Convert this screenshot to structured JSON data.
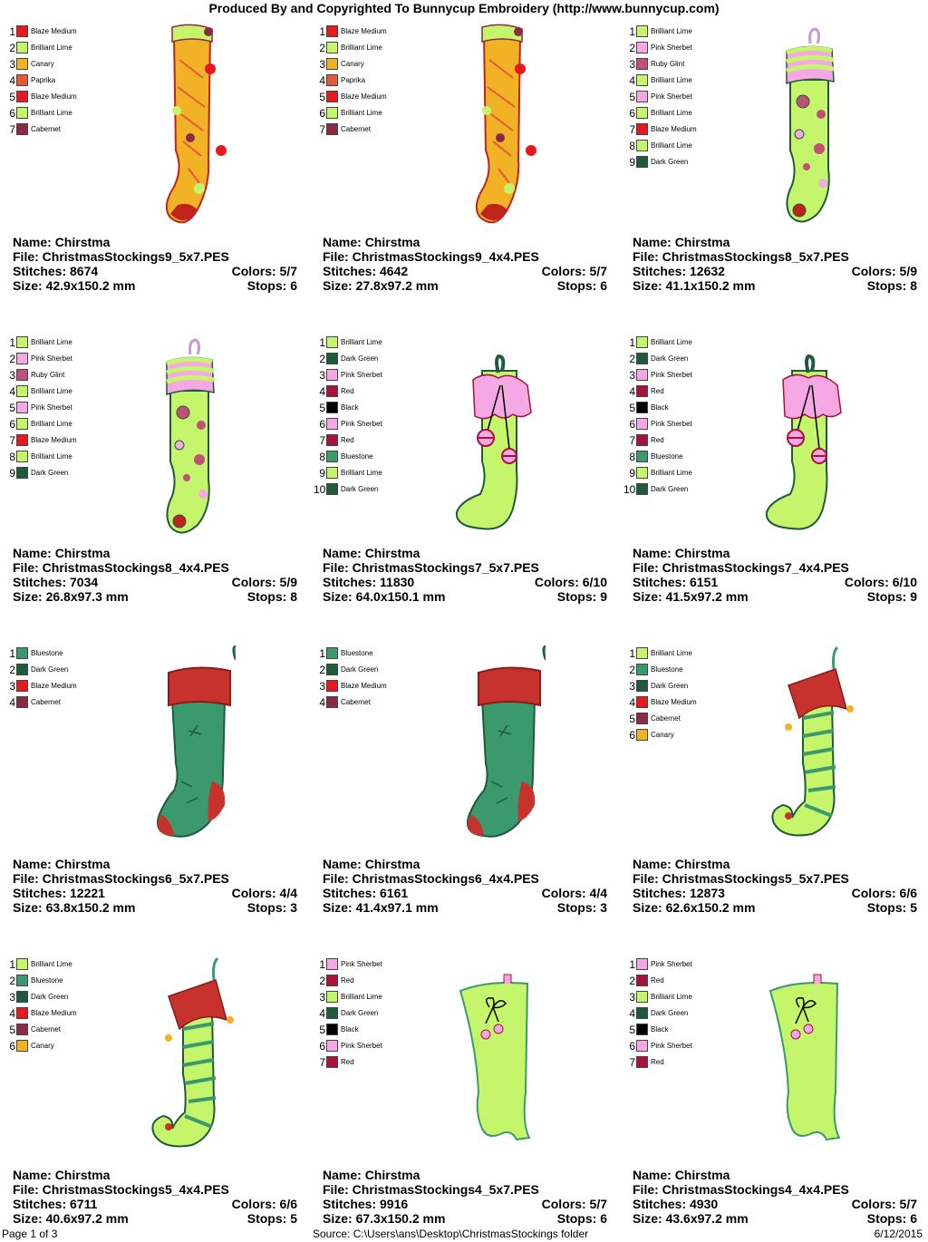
{
  "header": "Produced By and Copyrighted To Bunnycup Embroidery (http://www.bunnycup.com)",
  "labels": {
    "name": "Name:",
    "file": "File:",
    "stitches": "Stitches:",
    "size": "Size:",
    "colors": "Colors:",
    "stops": "Stops:"
  },
  "colors": {
    "Blaze Medium": "#e8191e",
    "Brilliant Lime": "#c4f56a",
    "Canary": "#f2b226",
    "Paprika": "#e8573a",
    "Cabernet": "#8b2a43",
    "Pink Sherbet": "#f6a8e4",
    "Ruby Glint": "#c0507a",
    "Dark Green": "#1f5a3c",
    "Red": "#a8123c",
    "Black": "#000000",
    "Bluestone": "#3a9a6e"
  },
  "designs": [
    {
      "name": "Chirstma",
      "file": "ChristmasStockings9_5x7.PES",
      "stitches": "8674",
      "colors": "5/7",
      "size": "42.9x150.2 mm",
      "stops": "6",
      "style": "yellow",
      "thread_list": [
        "Blaze Medium",
        "Brilliant Lime",
        "Canary",
        "Paprika",
        "Blaze Medium",
        "Brilliant Lime",
        "Cabernet"
      ]
    },
    {
      "name": "Chirstma",
      "file": "ChristmasStockings9_4x4.PES",
      "stitches": "4642",
      "colors": "5/7",
      "size": "27.8x97.2 mm",
      "stops": "6",
      "style": "yellow",
      "thread_list": [
        "Blaze Medium",
        "Brilliant Lime",
        "Canary",
        "Paprika",
        "Blaze Medium",
        "Brilliant Lime",
        "Cabernet"
      ]
    },
    {
      "name": "Chirstma",
      "file": "ChristmasStockings8_5x7.PES",
      "stitches": "12632",
      "colors": "5/9",
      "size": "41.1x150.2 mm",
      "stops": "8",
      "style": "dots",
      "thread_list": [
        "Brilliant Lime",
        "Pink Sherbet",
        "Ruby Glint",
        "Brilliant Lime",
        "Pink Sherbet",
        "Brilliant Lime",
        "Blaze Medium",
        "Brilliant Lime",
        "Dark Green"
      ]
    },
    {
      "name": "Chirstma",
      "file": "ChristmasStockings8_4x4.PES",
      "stitches": "7034",
      "colors": "5/9",
      "size": "26.8x97.3 mm",
      "stops": "8",
      "style": "dots",
      "thread_list": [
        "Brilliant Lime",
        "Pink Sherbet",
        "Ruby Glint",
        "Brilliant Lime",
        "Pink Sherbet",
        "Brilliant Lime",
        "Blaze Medium",
        "Brilliant Lime",
        "Dark Green"
      ]
    },
    {
      "name": "Chirstma",
      "file": "ChristmasStockings7_5x7.PES",
      "stitches": "11830",
      "colors": "6/10",
      "size": "64.0x150.1 mm",
      "stops": "9",
      "style": "ruffle",
      "thread_list": [
        "Brilliant Lime",
        "Dark Green",
        "Pink Sherbet",
        "Red",
        "Black",
        "Pink Sherbet",
        "Red",
        "Bluestone",
        "Brilliant Lime",
        "Dark Green"
      ]
    },
    {
      "name": "Chirstma",
      "file": "ChristmasStockings7_4x4.PES",
      "stitches": "6151",
      "colors": "6/10",
      "size": "41.5x97.2 mm",
      "stops": "9",
      "style": "ruffle",
      "thread_list": [
        "Brilliant Lime",
        "Dark Green",
        "Pink Sherbet",
        "Red",
        "Black",
        "Pink Sherbet",
        "Red",
        "Bluestone",
        "Brilliant Lime",
        "Dark Green"
      ]
    },
    {
      "name": "Chirstma",
      "file": "ChristmasStockings6_5x7.PES",
      "stitches": "12221",
      "colors": "4/4",
      "size": "63.8x150.2 mm",
      "stops": "3",
      "style": "classic",
      "thread_list": [
        "Bluestone",
        "Dark Green",
        "Blaze Medium",
        "Cabernet"
      ]
    },
    {
      "name": "Chirstma",
      "file": "ChristmasStockings6_4x4.PES",
      "stitches": "6161",
      "colors": "4/4",
      "size": "41.4x97.1 mm",
      "stops": "3",
      "style": "classic",
      "thread_list": [
        "Bluestone",
        "Dark Green",
        "Blaze Medium",
        "Cabernet"
      ]
    },
    {
      "name": "Chirstma",
      "file": "ChristmasStockings5_5x7.PES",
      "stitches": "12873",
      "colors": "6/6",
      "size": "62.6x150.2 mm",
      "stops": "5",
      "style": "elf",
      "thread_list": [
        "Brilliant Lime",
        "Bluestone",
        "Dark Green",
        "Blaze Medium",
        "Cabernet",
        "Canary"
      ]
    },
    {
      "name": "Chirstma",
      "file": "ChristmasStockings5_4x4.PES",
      "stitches": "6711",
      "colors": "6/6",
      "size": "40.6x97.2 mm",
      "stops": "5",
      "style": "elf",
      "thread_list": [
        "Brilliant Lime",
        "Bluestone",
        "Dark Green",
        "Blaze Medium",
        "Cabernet",
        "Canary"
      ]
    },
    {
      "name": "Chirstma",
      "file": "ChristmasStockings4_5x7.PES",
      "stitches": "9916",
      "colors": "5/7",
      "size": "67.3x150.2 mm",
      "stops": "6",
      "style": "boot",
      "thread_list": [
        "Pink Sherbet",
        "Red",
        "Brilliant Lime",
        "Dark Green",
        "Black",
        "Pink Sherbet",
        "Red"
      ]
    },
    {
      "name": "Chirstma",
      "file": "ChristmasStockings4_4x4.PES",
      "stitches": "4930",
      "colors": "5/7",
      "size": "43.6x97.2 mm",
      "stops": "6",
      "style": "boot",
      "thread_list": [
        "Pink Sherbet",
        "Red",
        "Brilliant Lime",
        "Dark Green",
        "Black",
        "Pink Sherbet",
        "Red"
      ]
    }
  ],
  "footer": {
    "page": "Page 1 of 3",
    "source": "Source: C:\\Users\\ans\\Desktop\\ChristmasStockings folder",
    "date": "6/12/2015"
  }
}
